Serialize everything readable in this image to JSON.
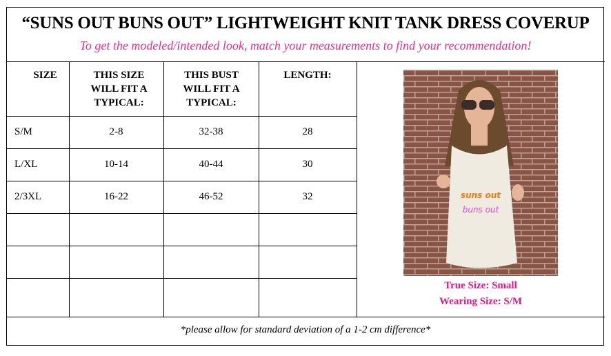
{
  "title": "“SUNS OUT BUNS OUT” LIGHTWEIGHT KNIT TANK DRESS COVERUP",
  "subtitle": "To get the modeled/intended look, match your measurements to find your recommendation!",
  "table": {
    "headers": [
      "SIZE",
      "THIS SIZE WILL FIT A TYPICAL:",
      "THIS BUST WILL FIT A TYPICAL:",
      "LENGTH:"
    ],
    "rows": [
      [
        "S/M",
        "2-8",
        "32-38",
        "28"
      ],
      [
        "L/XL",
        "10-14",
        "40-44",
        "30"
      ],
      [
        "2/3XL",
        "16-22",
        "46-52",
        "32"
      ],
      [
        "",
        "",
        "",
        ""
      ],
      [
        "",
        "",
        "",
        ""
      ],
      [
        "",
        "",
        "",
        ""
      ]
    ]
  },
  "photo": {
    "shirt_text_1": "suns out",
    "shirt_text_2": "buns out"
  },
  "captions": {
    "true_size": "True Size: Small",
    "wearing_size": "Wearing Size: S/M"
  },
  "footer": "*please allow for standard deviation of a 1-2 cm difference*",
  "colors": {
    "accent": "#e8168a",
    "subtitle": "#ec2d8c"
  }
}
